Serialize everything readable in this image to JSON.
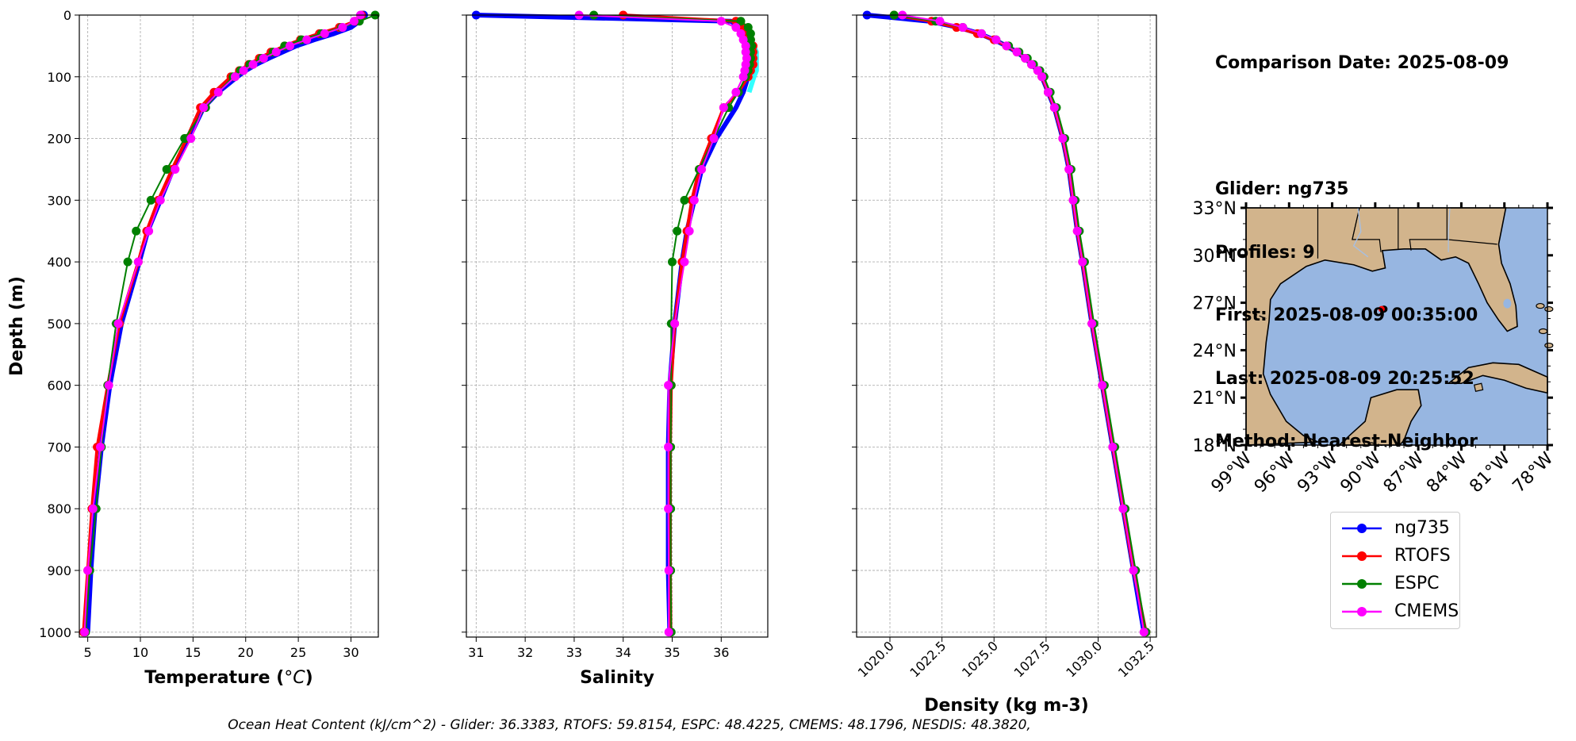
{
  "info": {
    "comparison_date": "Comparison Date: 2025-08-09",
    "glider": "Glider: ng735",
    "profiles": "Profiles: 9",
    "first": "First: 2025-08-09 00:35:00",
    "last": "Last: 2025-08-09 20:25:52",
    "method": "Method: Nearest-Neighbor"
  },
  "footer": "Ocean Heat Content (kJ/cm^2) - Glider: 36.3383,  RTOFS: 59.8154,  ESPC: 48.4225,  CMEMS: 48.1796,  NESDIS: 48.3820,",
  "legend": [
    {
      "name": "ng735",
      "color": "#0000ff"
    },
    {
      "name": "RTOFS",
      "color": "#ff0000"
    },
    {
      "name": "ESPC",
      "color": "#008000"
    },
    {
      "name": "CMEMS",
      "color": "#ff00ff"
    }
  ],
  "colors": {
    "glider_spread": "#00ffff",
    "map_land": "#d2b48c",
    "map_ocean": "#97b6e1",
    "grid": "#b0b0b0"
  },
  "chart_data": [
    {
      "type": "line",
      "title": "",
      "xlabel": "Temperature (°C)",
      "ylabel": "Depth (m)",
      "xlim": [
        4.2,
        32.6
      ],
      "ylim": [
        1008,
        0
      ],
      "xticks": [
        5,
        10,
        15,
        20,
        25,
        30
      ],
      "yticks": [
        0,
        100,
        200,
        300,
        400,
        500,
        600,
        700,
        800,
        900,
        1000
      ],
      "tick_rotation": 0,
      "grid": true,
      "y_depths": [
        0,
        10,
        20,
        30,
        40,
        50,
        60,
        70,
        80,
        90,
        100,
        125,
        150,
        200,
        250,
        300,
        350,
        400,
        500,
        600,
        700,
        800,
        900,
        1000
      ],
      "series": [
        {
          "name": "ng735",
          "values": [
            31.2,
            30.8,
            30.0,
            28.4,
            26.5,
            24.8,
            23.5,
            22.2,
            21.0,
            20.0,
            19.2,
            17.4,
            16.0,
            14.6,
            13.1,
            11.9,
            10.7,
            9.9,
            8.2,
            7.1,
            6.3,
            5.7,
            5.3,
            5.0
          ]
        },
        {
          "name": "RTOFS",
          "values": [
            31.0,
            30.4,
            28.9,
            27.0,
            25.2,
            23.7,
            22.4,
            21.3,
            20.3,
            19.4,
            18.6,
            17.0,
            15.7,
            14.4,
            13.0,
            11.7,
            10.6,
            9.8,
            8.0,
            6.9,
            5.9,
            5.4,
            5.0,
            4.6
          ]
        },
        {
          "name": "ESPC",
          "values": [
            32.3,
            30.8,
            29.1,
            27.2,
            25.3,
            23.7,
            22.6,
            21.5,
            20.4,
            19.5,
            18.8,
            17.4,
            16.2,
            14.2,
            12.5,
            11.0,
            9.6,
            8.8,
            7.7,
            6.9,
            6.3,
            5.8,
            5.2,
            4.8
          ]
        },
        {
          "name": "CMEMS",
          "values": [
            30.9,
            30.3,
            29.2,
            27.5,
            25.8,
            24.2,
            22.9,
            21.7,
            20.7,
            19.8,
            19.0,
            17.4,
            16.0,
            14.8,
            13.3,
            11.9,
            10.8,
            9.8,
            7.9,
            7.0,
            6.2,
            5.5,
            5.0,
            4.7
          ]
        }
      ]
    },
    {
      "type": "line",
      "title": "",
      "xlabel": "Salinity",
      "ylabel": "",
      "xlim": [
        30.8,
        36.95
      ],
      "ylim": [
        1008,
        0
      ],
      "xticks": [
        31,
        32,
        33,
        34,
        35,
        36
      ],
      "yticks": [
        0,
        100,
        200,
        300,
        400,
        500,
        600,
        700,
        800,
        900,
        1000
      ],
      "tick_rotation": 0,
      "grid": true,
      "y_depths": [
        0,
        10,
        20,
        30,
        40,
        50,
        60,
        70,
        80,
        90,
        100,
        125,
        150,
        200,
        250,
        300,
        350,
        400,
        500,
        600,
        700,
        800,
        900,
        1000
      ],
      "series": [
        {
          "name": "ng735",
          "values": [
            31.0,
            36.2,
            36.4,
            36.45,
            36.5,
            36.55,
            36.6,
            36.6,
            36.6,
            36.6,
            36.55,
            36.45,
            36.3,
            35.9,
            35.6,
            35.45,
            35.3,
            35.2,
            35.05,
            34.95,
            34.92,
            34.92,
            34.92,
            34.95
          ]
        },
        {
          "name": "RTOFS",
          "values": [
            34.0,
            36.3,
            36.45,
            36.55,
            36.6,
            36.65,
            36.65,
            36.65,
            36.65,
            36.6,
            36.55,
            36.35,
            36.05,
            35.8,
            35.55,
            35.4,
            35.3,
            35.2,
            35.05,
            34.98,
            34.96,
            34.96,
            34.96,
            34.97
          ]
        },
        {
          "name": "ESPC",
          "values": [
            33.4,
            36.4,
            36.55,
            36.6,
            36.6,
            36.62,
            36.6,
            36.6,
            36.58,
            36.55,
            36.5,
            36.35,
            36.15,
            35.85,
            35.55,
            35.25,
            35.1,
            35.0,
            34.98,
            34.98,
            34.97,
            34.97,
            34.97,
            34.98
          ]
        },
        {
          "name": "CMEMS",
          "values": [
            33.1,
            36.0,
            36.3,
            36.4,
            36.45,
            36.5,
            36.5,
            36.52,
            36.5,
            36.48,
            36.45,
            36.3,
            36.05,
            35.85,
            35.6,
            35.45,
            35.35,
            35.25,
            35.05,
            34.92,
            34.92,
            34.92,
            34.93,
            34.93
          ]
        }
      ]
    },
    {
      "type": "line",
      "title": "",
      "xlabel": "Density (kg m-3)",
      "ylabel": "",
      "xlim": [
        1018.4,
        1032.8
      ],
      "ylim": [
        1008,
        0
      ],
      "xticks": [
        1020.0,
        1022.5,
        1025.0,
        1027.5,
        1030.0,
        1032.5
      ],
      "yticks": [
        0,
        100,
        200,
        300,
        400,
        500,
        600,
        700,
        800,
        900,
        1000
      ],
      "tick_rotation": -45,
      "grid": true,
      "y_depths": [
        0,
        10,
        20,
        30,
        40,
        50,
        60,
        70,
        80,
        90,
        100,
        125,
        150,
        200,
        250,
        300,
        350,
        400,
        500,
        600,
        700,
        800,
        900,
        1000
      ],
      "series": [
        {
          "name": "ng735",
          "values": [
            1018.9,
            1021.9,
            1023.3,
            1024.3,
            1025.0,
            1025.6,
            1026.1,
            1026.5,
            1026.8,
            1027.1,
            1027.3,
            1027.6,
            1027.9,
            1028.3,
            1028.6,
            1028.8,
            1029.0,
            1029.25,
            1029.7,
            1030.2,
            1030.7,
            1031.2,
            1031.7,
            1032.2
          ]
        },
        {
          "name": "RTOFS",
          "values": [
            1020.2,
            1022.0,
            1023.2,
            1024.2,
            1025.0,
            1025.6,
            1026.1,
            1026.5,
            1026.8,
            1027.1,
            1027.3,
            1027.6,
            1027.9,
            1028.3,
            1028.6,
            1028.8,
            1029.0,
            1029.25,
            1029.7,
            1030.2,
            1030.7,
            1031.2,
            1031.7,
            1032.3
          ]
        },
        {
          "name": "ESPC",
          "values": [
            1020.2,
            1022.2,
            1023.5,
            1024.4,
            1025.1,
            1025.7,
            1026.2,
            1026.6,
            1026.9,
            1027.2,
            1027.4,
            1027.7,
            1028.0,
            1028.4,
            1028.7,
            1028.9,
            1029.1,
            1029.35,
            1029.8,
            1030.3,
            1030.8,
            1031.3,
            1031.8,
            1032.3
          ]
        },
        {
          "name": "CMEMS",
          "values": [
            1020.6,
            1022.4,
            1023.5,
            1024.4,
            1025.1,
            1025.6,
            1026.1,
            1026.5,
            1026.8,
            1027.1,
            1027.3,
            1027.6,
            1027.9,
            1028.3,
            1028.6,
            1028.8,
            1029.0,
            1029.25,
            1029.7,
            1030.2,
            1030.7,
            1031.2,
            1031.7,
            1032.2
          ]
        }
      ]
    }
  ],
  "map": {
    "lon_ticks": [
      "99°W",
      "96°W",
      "93°W",
      "90°W",
      "87°W",
      "84°W",
      "81°W",
      "78°W"
    ],
    "lat_ticks": [
      "33°N",
      "30°N",
      "27°N",
      "24°N",
      "21°N",
      "18°N"
    ],
    "glider_position": {
      "lon": -89.5,
      "lat": 26.6
    }
  }
}
